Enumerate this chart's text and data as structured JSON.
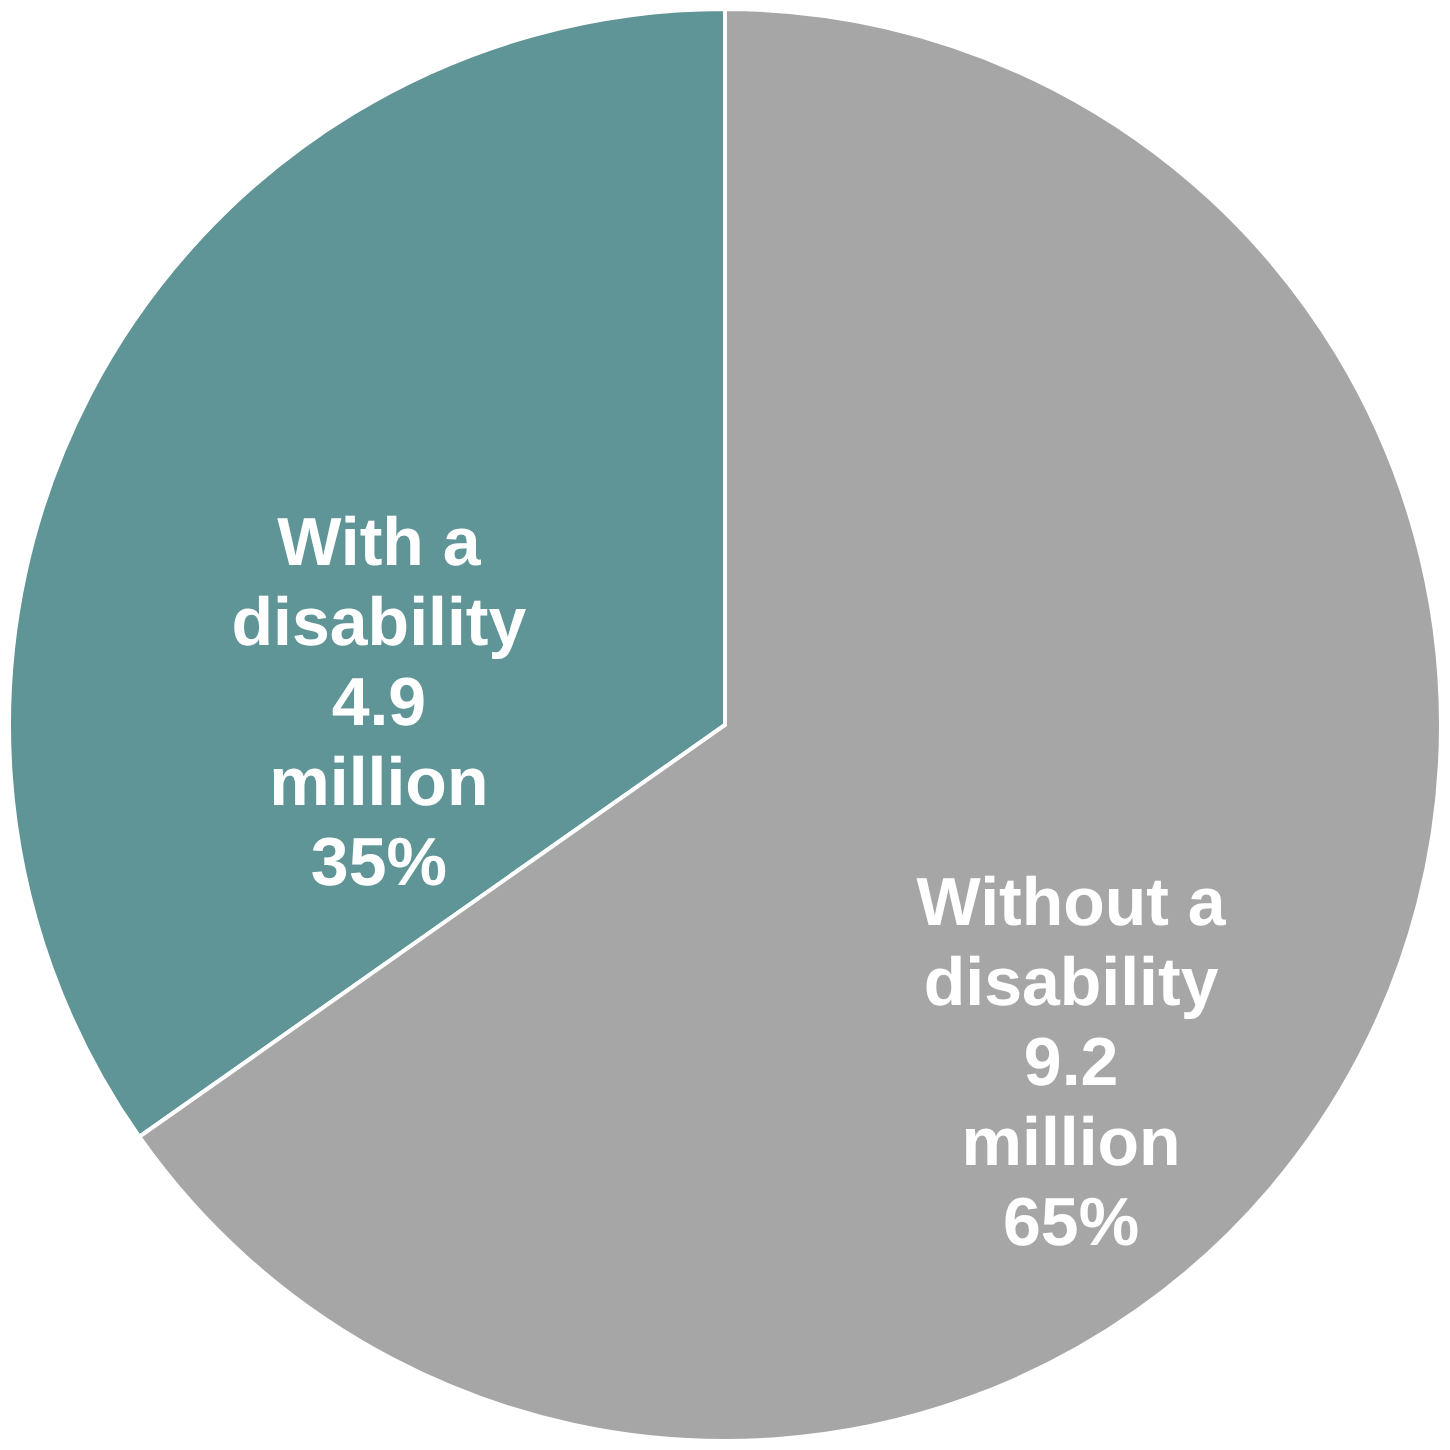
{
  "chart_data": {
    "type": "pie",
    "categories": [
      "With a disability",
      "Without a disability"
    ],
    "values": [
      4.9,
      9.2
    ],
    "colors": [
      "#5f9596",
      "#a6a6a6"
    ],
    "value_labels": [
      "4.9\nmillion\n35%",
      "9.2\nmillion\n65%"
    ]
  }
}
